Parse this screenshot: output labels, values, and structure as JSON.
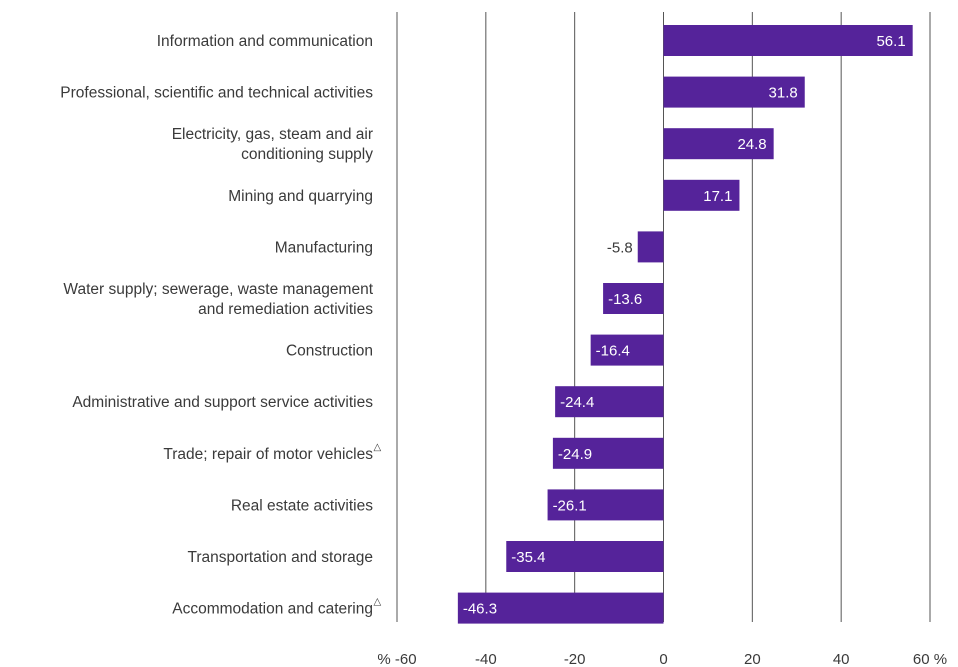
{
  "chart_data": {
    "type": "bar",
    "orientation": "horizontal",
    "categories": [
      {
        "lines": [
          "Information and communication"
        ],
        "marker": ""
      },
      {
        "lines": [
          "Professional, scientific and technical activities"
        ],
        "marker": ""
      },
      {
        "lines": [
          "Electricity, gas, steam and air",
          "conditioning supply"
        ],
        "marker": ""
      },
      {
        "lines": [
          "Mining and quarrying"
        ],
        "marker": ""
      },
      {
        "lines": [
          "Manufacturing"
        ],
        "marker": ""
      },
      {
        "lines": [
          "Water supply; sewerage, waste management",
          "and remediation activities"
        ],
        "marker": ""
      },
      {
        "lines": [
          "Construction"
        ],
        "marker": ""
      },
      {
        "lines": [
          "Administrative and support service activities"
        ],
        "marker": ""
      },
      {
        "lines": [
          "Trade; repair of motor vehicles"
        ],
        "marker": "△"
      },
      {
        "lines": [
          "Real estate activities"
        ],
        "marker": ""
      },
      {
        "lines": [
          "Transportation and storage"
        ],
        "marker": ""
      },
      {
        "lines": [
          "Accommodation and catering"
        ],
        "marker": "△"
      }
    ],
    "values": [
      56.1,
      31.8,
      24.8,
      17.1,
      -5.8,
      -13.6,
      -16.4,
      -24.4,
      -24.9,
      -26.1,
      -35.4,
      -46.3
    ],
    "value_labels": [
      "56.1",
      "31.8",
      "24.8",
      "17.1",
      "-5.8",
      "-13.6",
      "-16.4",
      "-24.4",
      "-24.9",
      "-26.1",
      "-35.4",
      "-46.3"
    ],
    "xlim": [
      -60,
      60
    ],
    "x_ticks": [
      {
        "value": -60,
        "label": "% -60"
      },
      {
        "value": -40,
        "label": "-40"
      },
      {
        "value": -20,
        "label": "-20"
      },
      {
        "value": 0,
        "label": "0"
      },
      {
        "value": 20,
        "label": "20"
      },
      {
        "value": 40,
        "label": "40"
      },
      {
        "value": 60,
        "label": "60 %"
      }
    ],
    "grid": true,
    "colors": {
      "bar": "#55239a",
      "label_inside": "#ffffff",
      "label_outside": "#3a3a3a",
      "grid": "#555555"
    }
  }
}
